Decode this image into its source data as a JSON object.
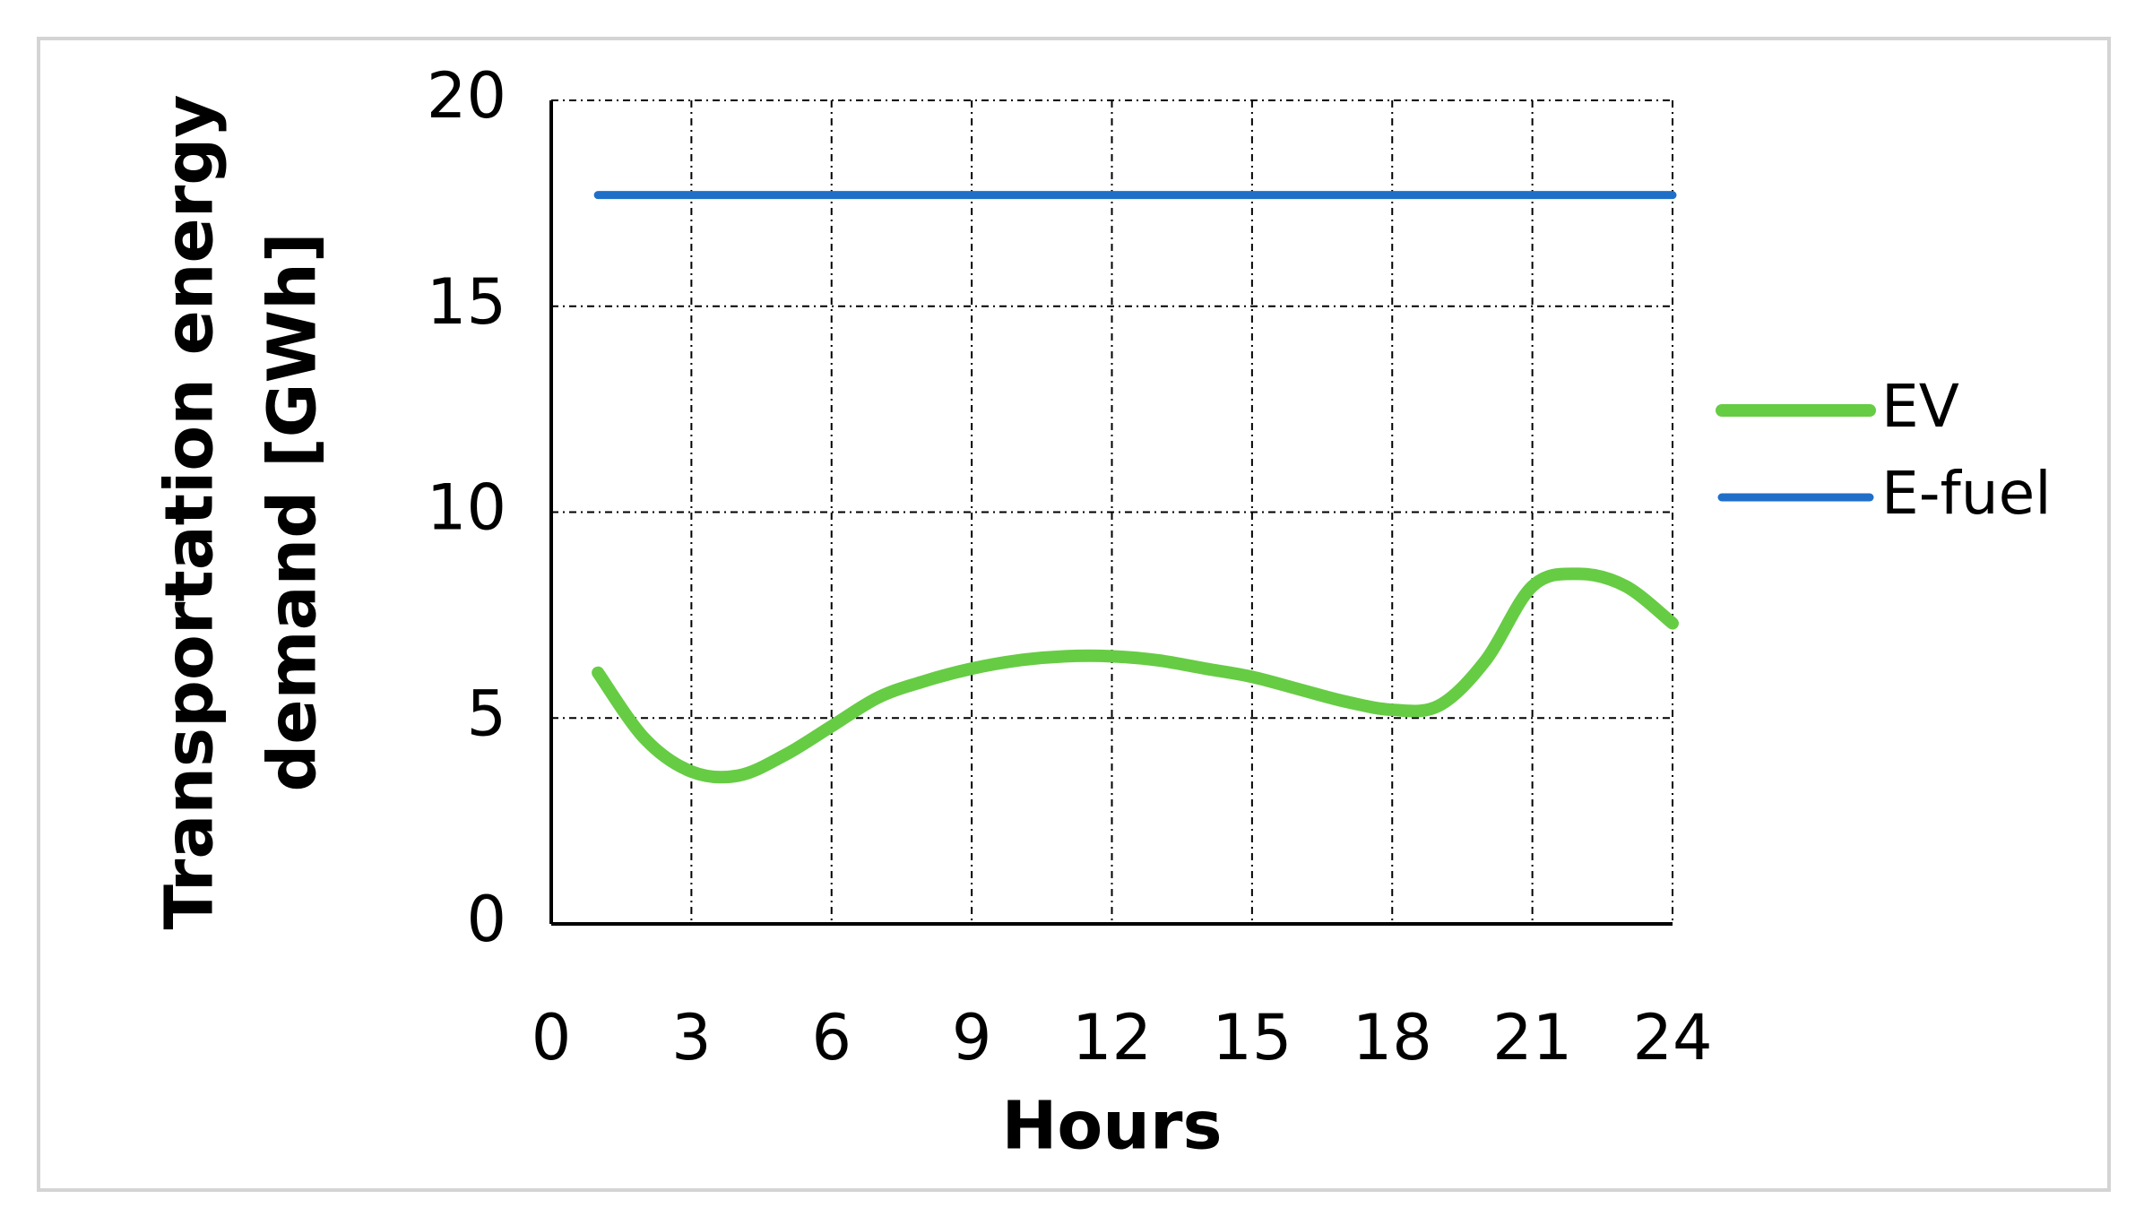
{
  "chart_data": {
    "type": "line",
    "y_label": [
      "Transportation energy",
      "demand [GWh]"
    ],
    "x_label": "Hours",
    "x": [
      1,
      2,
      3,
      4,
      5,
      6,
      7,
      8,
      9,
      10,
      11,
      12,
      13,
      14,
      15,
      16,
      17,
      18,
      19,
      20,
      21,
      22,
      23,
      24
    ],
    "series": [
      {
        "name": "EV",
        "color": "#66cc44",
        "values": [
          6.1,
          4.5,
          3.7,
          3.6,
          4.1,
          4.8,
          5.5,
          5.9,
          6.2,
          6.4,
          6.5,
          6.5,
          6.4,
          6.2,
          6.0,
          5.7,
          5.4,
          5.2,
          5.3,
          6.4,
          8.2,
          8.5,
          8.2,
          7.3
        ]
      },
      {
        "name": "E-fuel",
        "color": "#1f6fc8",
        "values": [
          17.7,
          17.7,
          17.7,
          17.7,
          17.7,
          17.7,
          17.7,
          17.7,
          17.7,
          17.7,
          17.7,
          17.7,
          17.7,
          17.7,
          17.7,
          17.7,
          17.7,
          17.7,
          17.7,
          17.7,
          17.7,
          17.7,
          17.7,
          17.7
        ]
      }
    ],
    "xlim": [
      0,
      24
    ],
    "xticks": [
      0,
      3,
      6,
      9,
      12,
      15,
      18,
      21,
      24
    ],
    "ylim": [
      0,
      20
    ],
    "yticks": [
      0,
      5,
      10,
      15,
      20
    ],
    "grid": true,
    "smooth": true,
    "legend": "right"
  }
}
